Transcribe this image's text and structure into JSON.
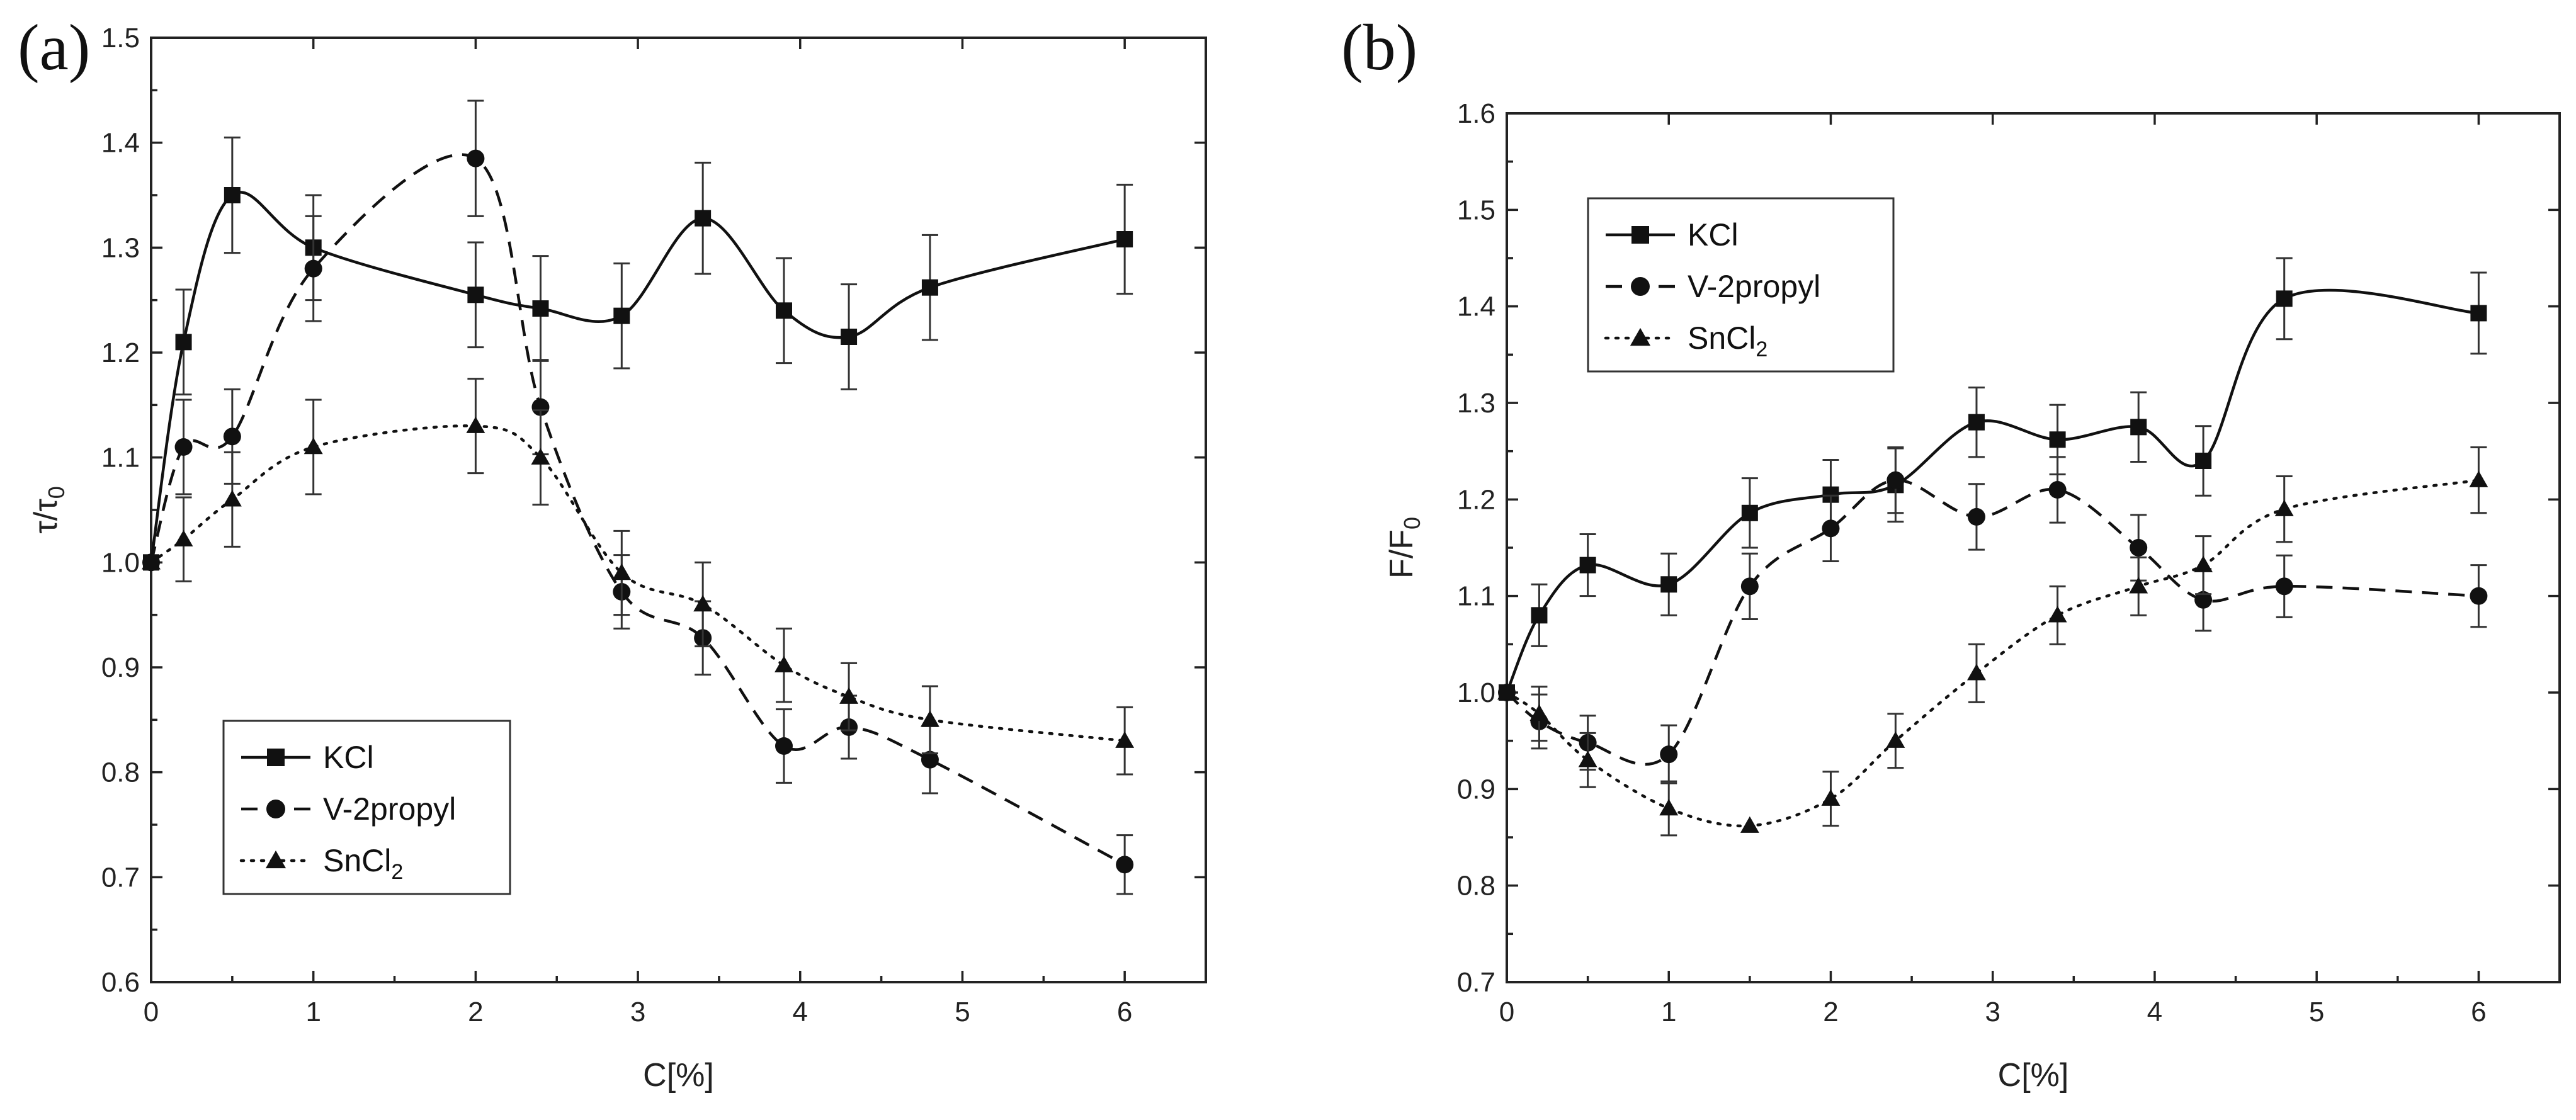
{
  "chart_data": [
    {
      "type": "line",
      "panel": "(a)",
      "xlabel": "C[%]",
      "ylabel_main": "τ/τ",
      "ylabel_sub": "0",
      "xlim": [
        0,
        6.5
      ],
      "ylim": [
        0.6,
        1.5
      ],
      "xticks": [
        "0",
        "1",
        "2",
        "3",
        "4",
        "5",
        "6"
      ],
      "yticks": [
        "0.6",
        "0.7",
        "0.8",
        "0.9",
        "1.0",
        "1.1",
        "1.2",
        "1.3",
        "1.4",
        "1.5"
      ],
      "legend_position": "bottom-left",
      "series": [
        {
          "name": "KCl",
          "name_main": "KCl",
          "name_sub": "",
          "marker": "square",
          "line": "solid",
          "x": [
            0,
            0.2,
            0.5,
            1,
            2,
            2.4,
            2.9,
            3.4,
            3.9,
            4.3,
            4.8,
            6
          ],
          "y": [
            1.0,
            1.21,
            1.35,
            1.3,
            1.255,
            1.242,
            1.235,
            1.328,
            1.24,
            1.215,
            1.262,
            1.308
          ],
          "err": [
            0,
            0.05,
            0.055,
            0.05,
            0.05,
            0.05,
            0.05,
            0.053,
            0.05,
            0.05,
            0.05,
            0.052
          ]
        },
        {
          "name": "V-2propyl",
          "name_main": "V-2propyl",
          "name_sub": "",
          "marker": "circle",
          "line": "dashed",
          "x": [
            0,
            0.2,
            0.5,
            1,
            2,
            2.4,
            2.9,
            3.4,
            3.9,
            4.3,
            4.8,
            6
          ],
          "y": [
            1.0,
            1.11,
            1.12,
            1.28,
            1.385,
            1.148,
            0.972,
            0.928,
            0.825,
            0.843,
            0.812,
            0.712
          ],
          "err": [
            0,
            0.045,
            0.045,
            0.05,
            0.055,
            0.045,
            0.035,
            0.035,
            0.035,
            0.03,
            0.032,
            0.028
          ]
        },
        {
          "name": "SnCl2",
          "name_main": "SnCl",
          "name_sub": "2",
          "marker": "triangle",
          "line": "dotted",
          "x": [
            0,
            0.2,
            0.5,
            1,
            2,
            2.4,
            2.9,
            3.4,
            3.9,
            4.3,
            4.8,
            6
          ],
          "y": [
            1.0,
            1.022,
            1.06,
            1.11,
            1.13,
            1.1,
            0.99,
            0.96,
            0.902,
            0.872,
            0.85,
            0.83
          ],
          "err": [
            0,
            0.04,
            0.045,
            0.045,
            0.045,
            0.045,
            0.04,
            0.04,
            0.035,
            0.032,
            0.032,
            0.032
          ]
        }
      ]
    },
    {
      "type": "line",
      "panel": "(b)",
      "xlabel": "C[%]",
      "ylabel_main": "F/F",
      "ylabel_sub": "0",
      "xlim": [
        0,
        6.5
      ],
      "ylim": [
        0.7,
        1.6
      ],
      "xticks": [
        "0",
        "1",
        "2",
        "3",
        "4",
        "5",
        "6"
      ],
      "yticks": [
        "0.7",
        "0.8",
        "0.9",
        "1.0",
        "1.1",
        "1.2",
        "1.3",
        "1.4",
        "1.5",
        "1.6"
      ],
      "legend_position": "top-left",
      "series": [
        {
          "name": "KCl",
          "name_main": "KCl",
          "name_sub": "",
          "marker": "square",
          "line": "solid",
          "x": [
            0,
            0.2,
            0.5,
            1,
            1.5,
            2,
            2.4,
            2.9,
            3.4,
            3.9,
            4.3,
            4.8,
            6
          ],
          "y": [
            1.0,
            1.08,
            1.132,
            1.112,
            1.186,
            1.205,
            1.215,
            1.28,
            1.262,
            1.275,
            1.24,
            1.408,
            1.393
          ],
          "err": [
            0,
            0.032,
            0.032,
            0.032,
            0.036,
            0.036,
            0.038,
            0.036,
            0.036,
            0.036,
            0.036,
            0.042,
            0.042
          ]
        },
        {
          "name": "V-2propyl",
          "name_main": "V-2propyl",
          "name_sub": "",
          "marker": "circle",
          "line": "dashed",
          "x": [
            0,
            0.2,
            0.5,
            1,
            1.5,
            2,
            2.4,
            2.9,
            3.4,
            3.9,
            4.3,
            4.8,
            6
          ],
          "y": [
            1.0,
            0.97,
            0.948,
            0.936,
            1.11,
            1.17,
            1.22,
            1.182,
            1.21,
            1.15,
            1.096,
            1.11,
            1.1
          ],
          "err": [
            0,
            0.028,
            0.028,
            0.03,
            0.034,
            0.034,
            0.034,
            0.034,
            0.034,
            0.034,
            0.032,
            0.032,
            0.032
          ]
        },
        {
          "name": "SnCl2",
          "name_main": "SnCl",
          "name_sub": "2",
          "marker": "triangle",
          "line": "dotted",
          "x": [
            0,
            0.2,
            0.5,
            1,
            1.5,
            2,
            2.4,
            2.9,
            3.4,
            3.9,
            4.3,
            4.8,
            6
          ],
          "y": [
            1.0,
            0.978,
            0.93,
            0.88,
            0.862,
            0.89,
            0.95,
            1.02,
            1.08,
            1.11,
            1.132,
            1.19,
            1.22
          ],
          "err": [
            0,
            0.028,
            0.028,
            0.028,
            0.0,
            0.028,
            0.028,
            0.03,
            0.03,
            0.03,
            0.03,
            0.034,
            0.034
          ]
        }
      ]
    }
  ]
}
